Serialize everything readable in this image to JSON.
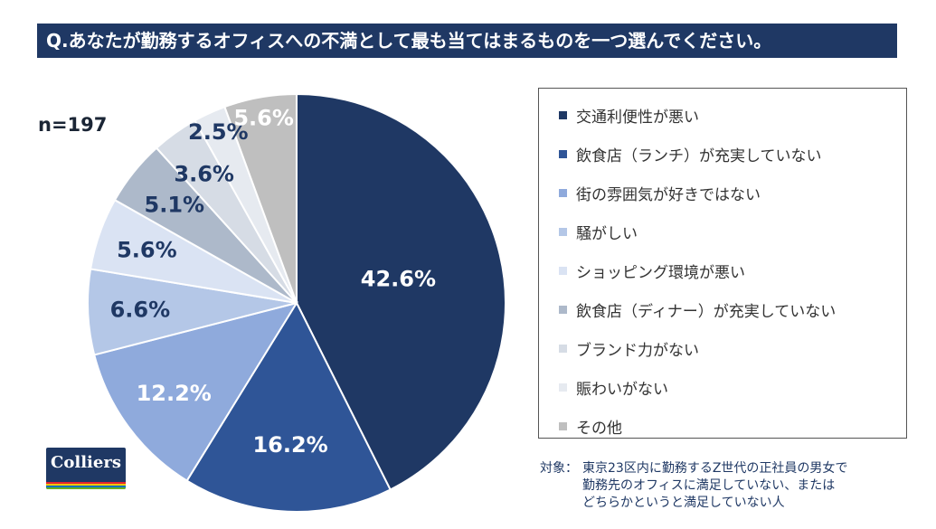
{
  "title": "Q.あなたが勤務するオフィスへの不満として最も当てはまるものを一つ選んでください。",
  "sample_size": "n=197",
  "chart_data": {
    "type": "pie",
    "start_angle": 0,
    "direction": "clockwise",
    "slices": [
      {
        "label": "交通利便性が悪い",
        "value": 42.6,
        "display": "42.6%",
        "color": "#1f3864",
        "text_color": "#ffffff"
      },
      {
        "label": "飲食店（ランチ）が充実していない",
        "value": 16.2,
        "display": "16.2%",
        "color": "#2f5597",
        "text_color": "#ffffff"
      },
      {
        "label": "街の雰囲気が好きではない",
        "value": 12.2,
        "display": "12.2%",
        "color": "#8faadc",
        "text_color": "#ffffff"
      },
      {
        "label": "騒がしい",
        "value": 6.6,
        "display": "6.6%",
        "color": "#b4c7e7",
        "text_color": "#1f3864"
      },
      {
        "label": "ショッピング環境が悪い",
        "value": 5.6,
        "display": "5.6%",
        "color": "#dae3f3",
        "text_color": "#1f3864"
      },
      {
        "label": "飲食店（ディナー）が充実していない",
        "value": 5.1,
        "display": "5.1%",
        "color": "#adb9ca",
        "text_color": "#1f3864"
      },
      {
        "label": "ブランド力がない",
        "value": 3.6,
        "display": "3.6%",
        "color": "#d6dce5",
        "text_color": "#1f3864"
      },
      {
        "label": "賑わいがない",
        "value": 2.5,
        "display": "2.5%",
        "color": "#e6eaf0",
        "text_color": "#1f3864"
      },
      {
        "label": "その他",
        "value": 5.6,
        "display": "5.6%",
        "color": "#bfbfbf",
        "text_color": "#ffffff"
      }
    ],
    "legend_position": "right"
  },
  "note": {
    "label": "対象：",
    "lines": [
      "東京23区内に勤務するZ世代の正社員の男女で",
      "勤務先のオフィスに満足していない、または",
      "どちらかというと満足していない人"
    ]
  },
  "logo": {
    "text": "Colliers",
    "stripe_colors": [
      "#e5262f",
      "#f2c500",
      "#0072bc",
      "#6ab023"
    ]
  }
}
